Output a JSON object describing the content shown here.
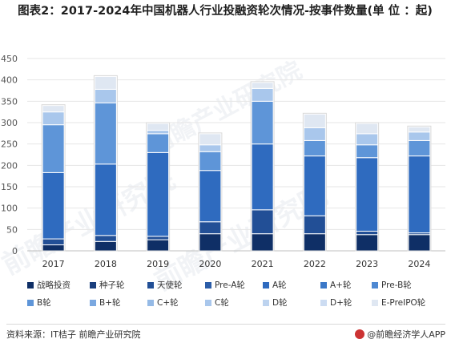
{
  "title": "图表2：2017-2024年中国机器人行业投融资轮次情况-按事件数量(单 位 ：起)",
  "chart_data": {
    "type": "bar",
    "stacked": true,
    "categories": [
      "2017",
      "2018",
      "2019",
      "2020",
      "2021",
      "2022",
      "2023",
      "2024"
    ],
    "ylim": [
      0,
      450
    ],
    "yticks": [
      0,
      50,
      100,
      150,
      200,
      250,
      300,
      350,
      400,
      450
    ],
    "legend_position": "bottom",
    "series": [
      {
        "name": "战略投资",
        "color": "#0f2f66",
        "values": [
          14,
          22,
          26,
          40,
          40,
          40,
          38,
          38
        ]
      },
      {
        "name": "种子轮",
        "color": "#1a3f7d",
        "values": [
          0,
          0,
          0,
          0,
          0,
          0,
          0,
          0
        ]
      },
      {
        "name": "天使轮",
        "color": "#224f96",
        "values": [
          14,
          14,
          8,
          28,
          56,
          42,
          8,
          4
        ]
      },
      {
        "name": "Pre-A轮",
        "color": "#2b5da8",
        "values": [
          0,
          0,
          0,
          0,
          0,
          0,
          0,
          0
        ]
      },
      {
        "name": "A轮",
        "color": "#2f6bbf",
        "values": [
          155,
          167,
          196,
          120,
          154,
          140,
          172,
          180
        ]
      },
      {
        "name": "A+轮",
        "color": "#3b78c8",
        "values": [
          0,
          0,
          0,
          0,
          0,
          0,
          0,
          0
        ]
      },
      {
        "name": "Pre-B轮",
        "color": "#4e88d2",
        "values": [
          0,
          0,
          0,
          0,
          0,
          0,
          0,
          0
        ]
      },
      {
        "name": "B轮",
        "color": "#5e95d8",
        "values": [
          112,
          143,
          44,
          44,
          100,
          36,
          30,
          36
        ]
      },
      {
        "name": "B+轮",
        "color": "#7aa8e0",
        "values": [
          0,
          0,
          0,
          0,
          0,
          0,
          0,
          0
        ]
      },
      {
        "name": "C+轮",
        "color": "#95bae6",
        "values": [
          0,
          0,
          0,
          0,
          0,
          0,
          0,
          0
        ]
      },
      {
        "name": "C轮",
        "color": "#a9c7ec",
        "values": [
          30,
          32,
          8,
          16,
          30,
          30,
          26,
          20
        ]
      },
      {
        "name": "D轮",
        "color": "#bdd3ef",
        "values": [
          0,
          0,
          0,
          0,
          0,
          0,
          0,
          0
        ]
      },
      {
        "name": "D+轮",
        "color": "#ccdcf2",
        "values": [
          0,
          0,
          0,
          0,
          0,
          0,
          0,
          0
        ]
      },
      {
        "name": "E-PreIPO轮",
        "color": "#dfe7f2",
        "values": [
          15,
          30,
          16,
          26,
          14,
          32,
          24,
          12
        ]
      }
    ]
  },
  "footer": {
    "source": "资料来源：IT桔子 前瞻产业研究院",
    "watermark": "@前瞻经济学人APP"
  },
  "watermark_text": "前瞻产业研究院"
}
